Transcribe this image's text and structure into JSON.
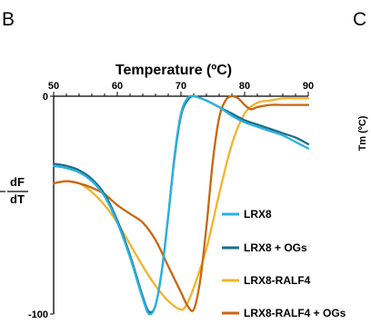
{
  "panel_labels": {
    "left": "B",
    "right": "C"
  },
  "side_label": "Tm (ºC)",
  "colors": {
    "LRX8": "#29b2e3",
    "LRX8 + OGs": "#1d6e86",
    "LRX8-RALF4": "#f2b32b",
    "LRX8-RALF4 + OGs": "#c9660f"
  },
  "chart_data": {
    "type": "line",
    "title": "Temperature (ºC)",
    "xlabel": "Temperature (ºC)",
    "ylabel": "",
    "ylabel_parts": [
      "dF",
      "dT"
    ],
    "x_axis_position": "top",
    "y_reversed": true,
    "xlim": [
      50,
      90
    ],
    "ylim": [
      0,
      -100
    ],
    "xticks": [
      50,
      60,
      70,
      80,
      90
    ],
    "yticks": [
      0,
      -100
    ],
    "grid": false,
    "legend_position": "bottom-right",
    "series": [
      {
        "name": "LRX8",
        "color": "#29b2e3",
        "points": [
          [
            50,
            -32
          ],
          [
            52,
            -33
          ],
          [
            54,
            -35
          ],
          [
            56,
            -39
          ],
          [
            58,
            -46
          ],
          [
            60,
            -58
          ],
          [
            62,
            -74
          ],
          [
            64,
            -93
          ],
          [
            65,
            -100
          ],
          [
            66,
            -96
          ],
          [
            67,
            -80
          ],
          [
            68,
            -55
          ],
          [
            69,
            -27
          ],
          [
            70,
            -8
          ],
          [
            71,
            -1
          ],
          [
            72,
            0
          ],
          [
            74,
            -2
          ],
          [
            76,
            -5
          ],
          [
            78,
            -9
          ],
          [
            80,
            -12
          ],
          [
            82,
            -14
          ],
          [
            84,
            -16
          ],
          [
            86,
            -18
          ],
          [
            88,
            -21
          ],
          [
            90,
            -24
          ]
        ]
      },
      {
        "name": "LRX8 + OGs",
        "color": "#1d6e86",
        "points": [
          [
            50,
            -31
          ],
          [
            52,
            -32
          ],
          [
            54,
            -34
          ],
          [
            56,
            -38
          ],
          [
            58,
            -45
          ],
          [
            60,
            -57
          ],
          [
            62,
            -73
          ],
          [
            64,
            -92
          ],
          [
            65,
            -99
          ],
          [
            66,
            -96
          ],
          [
            67,
            -80
          ],
          [
            68,
            -55
          ],
          [
            69,
            -28
          ],
          [
            70,
            -9
          ],
          [
            71,
            -2
          ],
          [
            72,
            0
          ],
          [
            74,
            -2
          ],
          [
            76,
            -5
          ],
          [
            78,
            -8
          ],
          [
            80,
            -11
          ],
          [
            82,
            -13
          ],
          [
            84,
            -15
          ],
          [
            86,
            -17
          ],
          [
            88,
            -19
          ],
          [
            90,
            -22
          ]
        ]
      },
      {
        "name": "LRX8-RALF4",
        "color": "#f2b32b",
        "points": [
          [
            50,
            -40
          ],
          [
            52,
            -39
          ],
          [
            54,
            -40
          ],
          [
            56,
            -44
          ],
          [
            58,
            -50
          ],
          [
            60,
            -58
          ],
          [
            62,
            -68
          ],
          [
            64,
            -78
          ],
          [
            66,
            -87
          ],
          [
            68,
            -94
          ],
          [
            70,
            -98
          ],
          [
            71,
            -95
          ],
          [
            72,
            -88
          ],
          [
            74,
            -70
          ],
          [
            76,
            -45
          ],
          [
            78,
            -22
          ],
          [
            80,
            -8
          ],
          [
            82,
            -3
          ],
          [
            84,
            -2
          ],
          [
            86,
            -1
          ],
          [
            88,
            -1
          ],
          [
            90,
            -1
          ]
        ]
      },
      {
        "name": "LRX8-RALF4 + OGs",
        "color": "#c9660f",
        "points": [
          [
            50,
            -40
          ],
          [
            52,
            -39
          ],
          [
            54,
            -40
          ],
          [
            56,
            -42
          ],
          [
            58,
            -45
          ],
          [
            60,
            -50
          ],
          [
            62,
            -54
          ],
          [
            64,
            -58
          ],
          [
            66,
            -66
          ],
          [
            68,
            -78
          ],
          [
            70,
            -90
          ],
          [
            71,
            -96
          ],
          [
            72,
            -98
          ],
          [
            73,
            -85
          ],
          [
            74,
            -60
          ],
          [
            75,
            -30
          ],
          [
            76,
            -10
          ],
          [
            77,
            -2
          ],
          [
            78,
            0
          ],
          [
            79,
            -1
          ],
          [
            80,
            -4
          ],
          [
            81,
            -6
          ],
          [
            82,
            -5
          ],
          [
            84,
            -4
          ],
          [
            86,
            -4
          ],
          [
            88,
            -4
          ],
          [
            90,
            -4
          ]
        ]
      }
    ]
  }
}
